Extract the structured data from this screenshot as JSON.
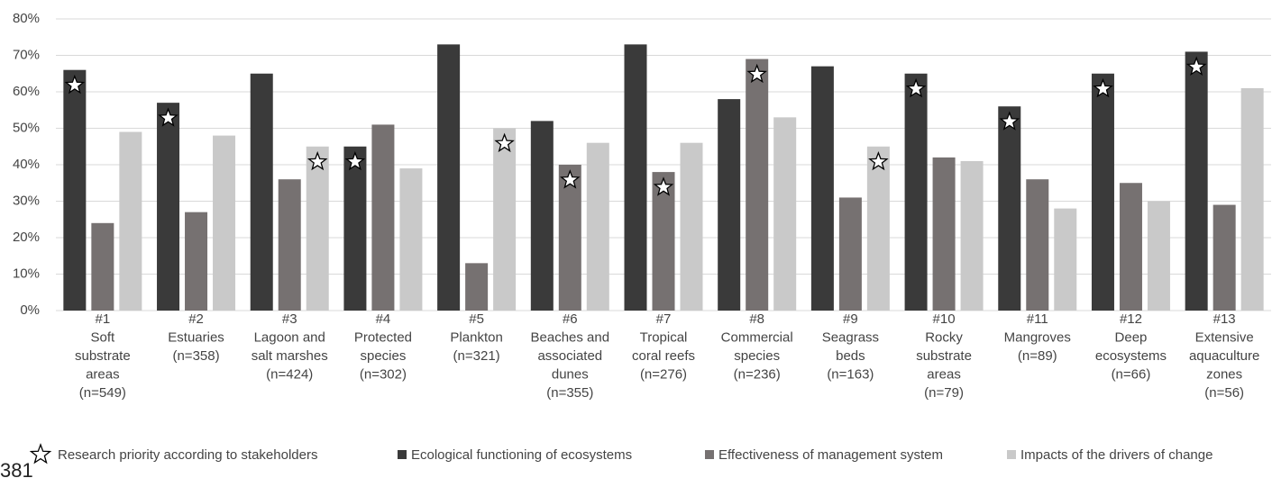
{
  "chart_data": {
    "type": "bar",
    "categories": [
      [
        "#1",
        "Soft",
        "substrate",
        "areas",
        "(n=549)"
      ],
      [
        "#2",
        "Estuaries",
        "(n=358)"
      ],
      [
        "#3",
        "Lagoon and",
        "salt marshes",
        "(n=424)"
      ],
      [
        "#4",
        "Protected",
        "species",
        "(n=302)"
      ],
      [
        "#5",
        "Plankton",
        "(n=321)"
      ],
      [
        "#6",
        "Beaches and",
        "associated",
        "dunes",
        "(n=355)"
      ],
      [
        "#7",
        "Tropical",
        "coral reefs",
        "(n=276)"
      ],
      [
        "#8",
        "Commercial",
        "species",
        "(n=236)"
      ],
      [
        "#9",
        "Seagrass",
        "beds",
        "(n=163)"
      ],
      [
        "#10",
        "Rocky",
        "substrate",
        "areas",
        "(n=79)"
      ],
      [
        "#11",
        "Mangroves",
        "(n=89)"
      ],
      [
        "#12",
        "Deep",
        "ecosystems",
        "(n=66)"
      ],
      [
        "#13",
        "Extensive",
        "aquaculture",
        "zones",
        "(n=56)"
      ]
    ],
    "series": [
      {
        "name": "Ecological functioning of ecosystems",
        "color": "#3a3a3a",
        "values": [
          66,
          57,
          65,
          45,
          73,
          52,
          73,
          58,
          67,
          65,
          56,
          65,
          71
        ]
      },
      {
        "name": "Effectiveness of management system",
        "color": "#767171",
        "values": [
          24,
          27,
          36,
          51,
          13,
          40,
          38,
          69,
          31,
          42,
          36,
          35,
          29
        ]
      },
      {
        "name": "Impacts of the drivers of change",
        "color": "#c9c9c9",
        "values": [
          49,
          48,
          45,
          39,
          50,
          46,
          46,
          53,
          45,
          41,
          28,
          30,
          61
        ]
      }
    ],
    "priority_label": "Research priority according to stakeholders",
    "priority": [
      0,
      0,
      2,
      0,
      2,
      1,
      1,
      1,
      2,
      0,
      0,
      0,
      0
    ],
    "ylim": [
      0,
      80
    ],
    "yticks": [
      {
        "value": 0,
        "label": "0%"
      },
      {
        "value": 10,
        "label": "10%"
      },
      {
        "value": 20,
        "label": "20%"
      },
      {
        "value": 30,
        "label": "30%"
      },
      {
        "value": 40,
        "label": "40%"
      },
      {
        "value": 50,
        "label": "50%"
      },
      {
        "value": 60,
        "label": "60%"
      },
      {
        "value": 70,
        "label": "70%"
      },
      {
        "value": 80,
        "label": "80%"
      }
    ],
    "grid": true
  },
  "page_number": "381"
}
